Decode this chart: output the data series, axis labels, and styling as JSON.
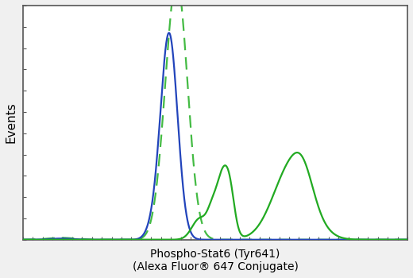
{
  "title_line1": "Phospho-Stat6 (Tyr641)",
  "title_line2": "(Alexa Fluor® 647 Conjugate)",
  "ylabel": "Events",
  "bg_color": "#f0f0f0",
  "plot_bg_color": "#ffffff",
  "border_color": "#555555",
  "blue_solid_color": "#2244bb",
  "green_dashed_color": "#44bb44",
  "green_solid_color": "#22aa22",
  "line_width": 1.6,
  "figsize": [
    5.2,
    3.5
  ],
  "dpi": 100,
  "xlim": [
    0,
    1000
  ],
  "ylim": [
    0,
    1.0
  ]
}
